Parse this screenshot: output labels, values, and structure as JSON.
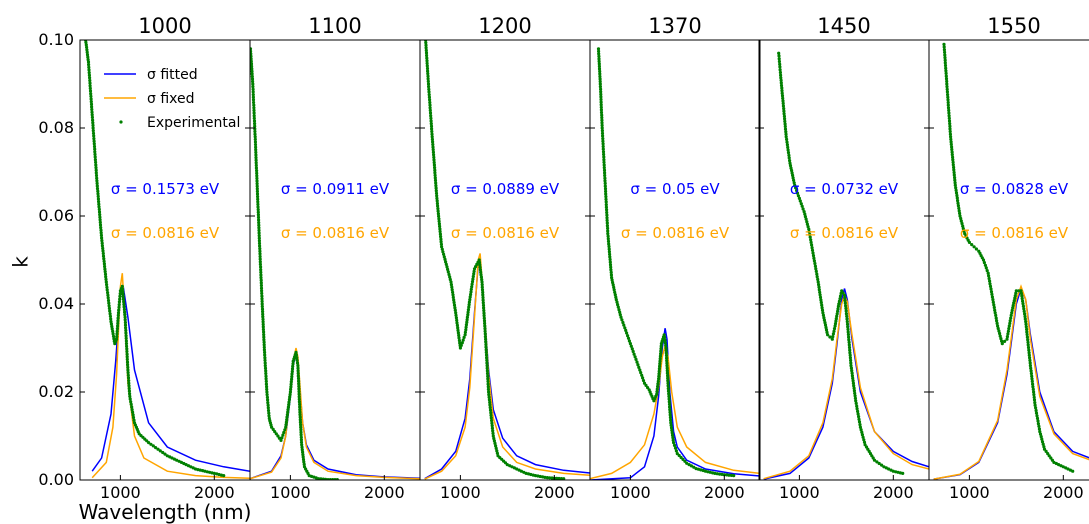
{
  "figure": {
    "ylabel": "k",
    "xlabel": "Wavelength (nm)",
    "ytick_labels": [
      "0.00",
      "0.02",
      "0.04",
      "0.06",
      "0.08",
      "0.10"
    ],
    "legend": {
      "fitted": "σ fitted",
      "fixed": "σ fixed",
      "experimental": "Experimental"
    }
  },
  "colors": {
    "fitted": "#0000ff",
    "fixed": "#ffa500",
    "experimental": "#008000"
  },
  "chart_data": [
    {
      "type": "line",
      "title": "1000",
      "xlim": [
        570,
        2380
      ],
      "ylim": [
        0,
        0.1
      ],
      "xticks": [
        1000,
        2000
      ],
      "yticks": [
        0,
        0.02,
        0.04,
        0.06,
        0.08,
        0.1
      ],
      "annotations": {
        "fitted": "σ = 0.1573 eV",
        "fixed": "σ = 0.0816 eV"
      },
      "series": [
        {
          "name": "σ fitted",
          "x": [
            700,
            800,
            900,
            950,
            1000,
            1030,
            1080,
            1150,
            1300,
            1500,
            1800,
            2100,
            2380
          ],
          "y": [
            0.002,
            0.005,
            0.015,
            0.027,
            0.042,
            0.044,
            0.037,
            0.025,
            0.013,
            0.0075,
            0.0045,
            0.003,
            0.002
          ]
        },
        {
          "name": "σ fixed",
          "x": [
            700,
            850,
            920,
            960,
            1000,
            1020,
            1040,
            1080,
            1150,
            1250,
            1500,
            1800,
            2100,
            2380
          ],
          "y": [
            0.0005,
            0.004,
            0.012,
            0.024,
            0.044,
            0.047,
            0.04,
            0.022,
            0.01,
            0.005,
            0.002,
            0.001,
            0.0006,
            0.0004
          ]
        },
        {
          "name": "Experimental",
          "marker": "dot",
          "x": [
            630,
            660,
            700,
            750,
            800,
            850,
            900,
            940,
            960,
            980,
            1000,
            1020,
            1050,
            1080,
            1100,
            1150,
            1200,
            1300,
            1400,
            1500,
            1600,
            1700,
            1800,
            1900,
            2000,
            2100
          ],
          "y": [
            0.1,
            0.095,
            0.083,
            0.068,
            0.055,
            0.045,
            0.036,
            0.031,
            0.032,
            0.038,
            0.043,
            0.044,
            0.037,
            0.025,
            0.019,
            0.013,
            0.0105,
            0.0085,
            0.007,
            0.0055,
            0.0045,
            0.0035,
            0.0025,
            0.002,
            0.0015,
            0.001
          ]
        }
      ]
    },
    {
      "type": "line",
      "title": "1100",
      "xlim": [
        570,
        2380
      ],
      "ylim": [
        0,
        0.1
      ],
      "xticks": [
        1000,
        2000
      ],
      "yticks": [
        0,
        0.02,
        0.04,
        0.06,
        0.08,
        0.1
      ],
      "annotations": {
        "fitted": "σ = 0.0911 eV",
        "fixed": "σ = 0.0816 eV"
      },
      "series": [
        {
          "name": "σ fitted",
          "x": [
            570,
            800,
            900,
            950,
            1000,
            1030,
            1060,
            1080,
            1100,
            1130,
            1170,
            1250,
            1400,
            1700,
            2000,
            2380
          ],
          "y": [
            0.0003,
            0.002,
            0.0055,
            0.01,
            0.019,
            0.026,
            0.029,
            0.027,
            0.021,
            0.013,
            0.008,
            0.0045,
            0.0025,
            0.0012,
            0.0007,
            0.0004
          ]
        },
        {
          "name": "σ fixed",
          "x": [
            570,
            800,
            900,
            950,
            1000,
            1030,
            1060,
            1080,
            1100,
            1130,
            1170,
            1250,
            1400,
            1700,
            2000,
            2380
          ],
          "y": [
            0.0003,
            0.0018,
            0.005,
            0.01,
            0.02,
            0.027,
            0.03,
            0.028,
            0.022,
            0.013,
            0.0075,
            0.004,
            0.002,
            0.001,
            0.0006,
            0.0003
          ]
        },
        {
          "name": "Experimental",
          "marker": "dot",
          "x": [
            575,
            600,
            625,
            650,
            675,
            700,
            725,
            750,
            775,
            800,
            850,
            900,
            950,
            1000,
            1030,
            1060,
            1080,
            1100,
            1120,
            1150,
            1200,
            1300,
            1400,
            1500
          ],
          "y": [
            0.098,
            0.09,
            0.078,
            0.065,
            0.052,
            0.04,
            0.029,
            0.02,
            0.014,
            0.012,
            0.0105,
            0.009,
            0.012,
            0.02,
            0.027,
            0.029,
            0.026,
            0.016,
            0.008,
            0.003,
            0.001,
            0.0003,
            0.0001,
            0.0001
          ]
        }
      ]
    },
    {
      "type": "line",
      "title": "1200",
      "xlim": [
        570,
        2380
      ],
      "ylim": [
        0,
        0.1
      ],
      "xticks": [
        1000,
        2000
      ],
      "yticks": [
        0,
        0.02,
        0.04,
        0.06,
        0.08,
        0.1
      ],
      "annotations": {
        "fitted": "σ = 0.0889 eV",
        "fixed": "σ = 0.0816 eV"
      },
      "series": [
        {
          "name": "σ fitted",
          "x": [
            620,
            800,
            950,
            1050,
            1100,
            1150,
            1190,
            1210,
            1240,
            1300,
            1350,
            1450,
            1600,
            1800,
            2100,
            2380
          ],
          "y": [
            0.0003,
            0.0025,
            0.0065,
            0.014,
            0.023,
            0.038,
            0.049,
            0.05,
            0.042,
            0.025,
            0.016,
            0.0095,
            0.0055,
            0.0035,
            0.0022,
            0.0016
          ]
        },
        {
          "name": "σ fixed",
          "x": [
            620,
            800,
            950,
            1050,
            1100,
            1150,
            1190,
            1210,
            1240,
            1300,
            1350,
            1450,
            1600,
            1800,
            2100,
            2380
          ],
          "y": [
            0.0002,
            0.002,
            0.0055,
            0.012,
            0.021,
            0.037,
            0.05,
            0.0515,
            0.043,
            0.024,
            0.014,
            0.0075,
            0.004,
            0.0025,
            0.0015,
            0.0011
          ]
        },
        {
          "name": "Experimental",
          "marker": "dot",
          "x": [
            630,
            660,
            700,
            750,
            800,
            850,
            900,
            950,
            1000,
            1050,
            1100,
            1150,
            1200,
            1230,
            1260,
            1300,
            1350,
            1400,
            1500,
            1600,
            1700,
            1800,
            1900,
            2000,
            2100
          ],
          "y": [
            0.1,
            0.09,
            0.078,
            0.064,
            0.053,
            0.049,
            0.045,
            0.038,
            0.03,
            0.033,
            0.041,
            0.048,
            0.05,
            0.045,
            0.035,
            0.02,
            0.01,
            0.0055,
            0.0035,
            0.0025,
            0.0015,
            0.001,
            0.0006,
            0.0004,
            0.0003
          ]
        }
      ]
    },
    {
      "type": "line",
      "title": "1370",
      "xlim": [
        570,
        2380
      ],
      "ylim": [
        0,
        0.1
      ],
      "xticks": [
        1000,
        2000
      ],
      "yticks": [
        0,
        0.02,
        0.04,
        0.06,
        0.08,
        0.1
      ],
      "annotations": {
        "fitted": "σ = 0.05 eV",
        "fixed": "σ = 0.0816 eV"
      },
      "series": [
        {
          "name": "σ fitted",
          "x": [
            570,
            1000,
            1150,
            1250,
            1300,
            1340,
            1370,
            1390,
            1420,
            1460,
            1500,
            1600,
            1800,
            2100,
            2380
          ],
          "y": [
            0,
            0.0005,
            0.003,
            0.01,
            0.019,
            0.03,
            0.0345,
            0.032,
            0.02,
            0.011,
            0.0075,
            0.0045,
            0.0025,
            0.0014,
            0.0009
          ]
        },
        {
          "name": "σ fixed",
          "x": [
            570,
            800,
            1000,
            1150,
            1250,
            1300,
            1340,
            1370,
            1400,
            1440,
            1500,
            1600,
            1800,
            2100,
            2380
          ],
          "y": [
            0.0003,
            0.0015,
            0.004,
            0.008,
            0.015,
            0.021,
            0.028,
            0.0305,
            0.028,
            0.02,
            0.012,
            0.0075,
            0.004,
            0.0022,
            0.0015
          ]
        },
        {
          "name": "Experimental",
          "marker": "dot",
          "x": [
            660,
            680,
            700,
            730,
            760,
            800,
            850,
            900,
            950,
            1000,
            1050,
            1100,
            1150,
            1200,
            1250,
            1280,
            1300,
            1330,
            1360,
            1380,
            1400,
            1430,
            1460,
            1500,
            1600,
            1700,
            1800,
            1900,
            2000,
            2100
          ],
          "y": [
            0.098,
            0.09,
            0.08,
            0.068,
            0.056,
            0.046,
            0.041,
            0.037,
            0.034,
            0.031,
            0.028,
            0.025,
            0.022,
            0.0205,
            0.018,
            0.0195,
            0.023,
            0.031,
            0.033,
            0.03,
            0.022,
            0.013,
            0.0085,
            0.006,
            0.0038,
            0.0026,
            0.002,
            0.0015,
            0.0012,
            0.001
          ]
        }
      ]
    },
    {
      "type": "line",
      "title": "1450",
      "xlim": [
        570,
        2380
      ],
      "ylim": [
        0,
        0.1
      ],
      "xticks": [
        1000,
        2000
      ],
      "yticks": [
        0,
        0.02,
        0.04,
        0.06,
        0.08,
        0.1
      ],
      "annotations": {
        "fitted": "σ = 0.0732 eV",
        "fixed": "σ = 0.0816 eV"
      },
      "series": [
        {
          "name": "σ fitted",
          "x": [
            620,
            900,
            1100,
            1250,
            1350,
            1400,
            1450,
            1480,
            1510,
            1560,
            1650,
            1800,
            2000,
            2200,
            2380
          ],
          "y": [
            0.0002,
            0.0015,
            0.005,
            0.012,
            0.022,
            0.031,
            0.041,
            0.0435,
            0.041,
            0.032,
            0.02,
            0.011,
            0.0065,
            0.0042,
            0.003
          ]
        },
        {
          "name": "σ fixed",
          "x": [
            620,
            900,
            1100,
            1250,
            1350,
            1400,
            1450,
            1480,
            1510,
            1560,
            1650,
            1800,
            2000,
            2200,
            2380
          ],
          "y": [
            0.0003,
            0.002,
            0.0055,
            0.013,
            0.023,
            0.032,
            0.04,
            0.042,
            0.0405,
            0.033,
            0.021,
            0.011,
            0.006,
            0.0035,
            0.0025
          ]
        },
        {
          "name": "Experimental",
          "marker": "dot",
          "x": [
            780,
            800,
            830,
            860,
            900,
            950,
            1000,
            1050,
            1100,
            1150,
            1200,
            1250,
            1300,
            1350,
            1380,
            1420,
            1450,
            1480,
            1510,
            1550,
            1600,
            1650,
            1700,
            1800,
            1900,
            2000,
            2100
          ],
          "y": [
            0.097,
            0.092,
            0.085,
            0.078,
            0.072,
            0.067,
            0.064,
            0.061,
            0.057,
            0.051,
            0.045,
            0.038,
            0.033,
            0.032,
            0.035,
            0.04,
            0.043,
            0.042,
            0.036,
            0.026,
            0.018,
            0.012,
            0.008,
            0.0045,
            0.003,
            0.002,
            0.0015
          ]
        }
      ]
    },
    {
      "type": "line",
      "title": "1550",
      "xlim": [
        570,
        2380
      ],
      "ylim": [
        0,
        0.1
      ],
      "xticks": [
        1000,
        2000
      ],
      "yticks": [
        0,
        0.02,
        0.04,
        0.06,
        0.08,
        0.1
      ],
      "annotations": {
        "fitted": "σ = 0.0828 eV",
        "fixed": "σ = 0.0816 eV"
      },
      "series": [
        {
          "name": "σ fitted",
          "x": [
            620,
            900,
            1100,
            1300,
            1400,
            1450,
            1500,
            1550,
            1600,
            1650,
            1750,
            1900,
            2100,
            2380
          ],
          "y": [
            0.0002,
            0.0012,
            0.004,
            0.013,
            0.024,
            0.032,
            0.04,
            0.0435,
            0.041,
            0.033,
            0.02,
            0.011,
            0.0065,
            0.0042
          ]
        },
        {
          "name": "σ fixed",
          "x": [
            620,
            900,
            1100,
            1300,
            1400,
            1450,
            1500,
            1550,
            1600,
            1650,
            1750,
            1900,
            2100,
            2380
          ],
          "y": [
            0.0002,
            0.0013,
            0.0042,
            0.0135,
            0.025,
            0.033,
            0.041,
            0.044,
            0.041,
            0.032,
            0.019,
            0.0105,
            0.006,
            0.0038
          ]
        },
        {
          "name": "Experimental",
          "marker": "dot",
          "x": [
            730,
            760,
            800,
            850,
            900,
            950,
            1000,
            1050,
            1100,
            1150,
            1200,
            1250,
            1300,
            1350,
            1400,
            1450,
            1500,
            1550,
            1600,
            1650,
            1700,
            1750,
            1800,
            1900,
            2000,
            2100
          ],
          "y": [
            0.099,
            0.09,
            0.078,
            0.067,
            0.06,
            0.056,
            0.054,
            0.053,
            0.052,
            0.05,
            0.047,
            0.041,
            0.035,
            0.031,
            0.032,
            0.038,
            0.043,
            0.043,
            0.036,
            0.026,
            0.017,
            0.011,
            0.007,
            0.004,
            0.003,
            0.002
          ]
        }
      ]
    }
  ]
}
